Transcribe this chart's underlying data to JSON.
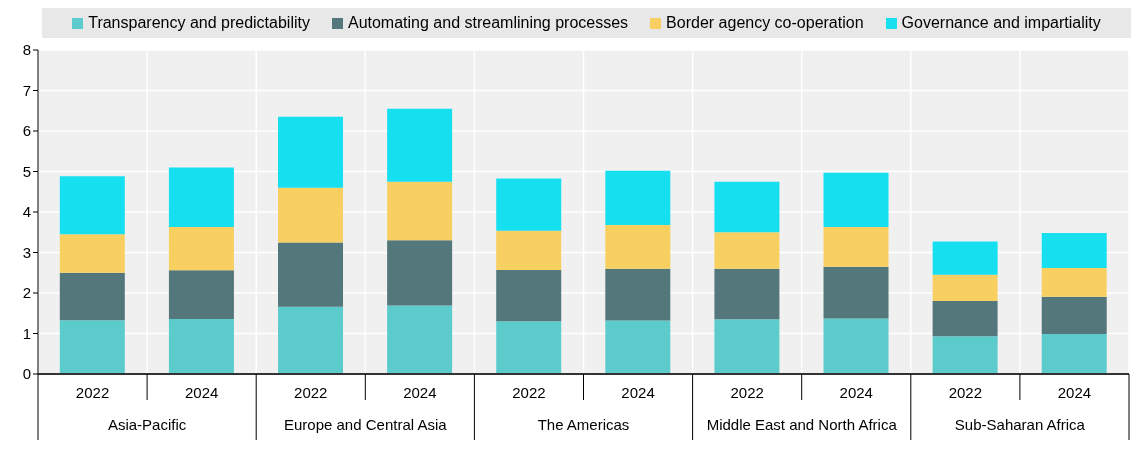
{
  "chart_data": {
    "type": "bar",
    "stacked": true,
    "categories": [
      "2022",
      "2024",
      "2022",
      "2024",
      "2022",
      "2024",
      "2022",
      "2024",
      "2022",
      "2024"
    ],
    "series": [
      {
        "name": "Transparency and predictability",
        "color": "#5bcbcb",
        "values": [
          1.33,
          1.36,
          1.66,
          1.69,
          1.3,
          1.32,
          1.35,
          1.37,
          0.93,
          0.99
        ]
      },
      {
        "name": "Automating and streamlining processes",
        "color": "#53777b",
        "values": [
          1.17,
          1.2,
          1.59,
          1.61,
          1.27,
          1.28,
          1.25,
          1.28,
          0.87,
          0.92
        ]
      },
      {
        "name": "Border agency co-operation",
        "color": "#f8d061",
        "values": [
          0.95,
          1.07,
          1.35,
          1.45,
          0.97,
          1.08,
          0.9,
          0.98,
          0.65,
          0.71
        ]
      },
      {
        "name": "Governance and impartiality",
        "color": "#16dff0",
        "values": [
          1.43,
          1.47,
          1.75,
          1.8,
          1.29,
          1.34,
          1.25,
          1.34,
          0.82,
          0.86
        ]
      }
    ],
    "annotations": [
      "Asia-Pacific",
      "Europe and Central Asia",
      "The Americas",
      "Middle East and North Africa",
      "Sub-Saharan Africa"
    ],
    "ylim": [
      0,
      8
    ],
    "yticks": [
      0,
      1,
      2,
      3,
      4,
      5,
      6,
      7,
      8
    ],
    "grid": true,
    "legend": "top"
  }
}
